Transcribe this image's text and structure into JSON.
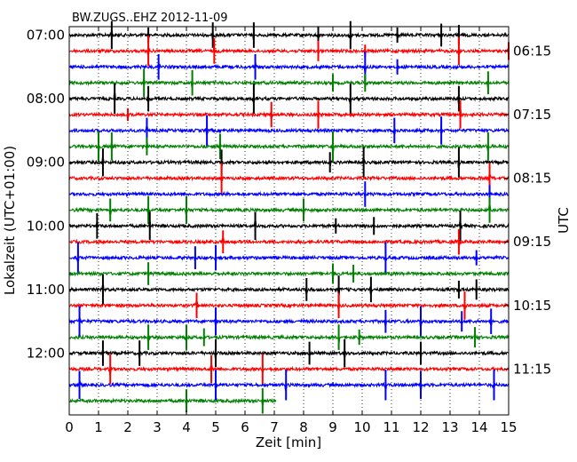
{
  "chart_data": {
    "type": "line",
    "title": "BW.ZUGS..EHZ 2012-11-09",
    "xlabel": "Zeit  [min]",
    "ylabel_left": "Lokalzeit (UTC+01:00)",
    "ylabel_right": "UTC",
    "xlim": [
      0,
      15
    ],
    "x_ticks": [
      "0",
      "1",
      "2",
      "3",
      "4",
      "5",
      "6",
      "7",
      "8",
      "9",
      "10",
      "11",
      "12",
      "13",
      "14",
      "15"
    ],
    "left_ticks": [
      "07:00",
      "08:00",
      "09:00",
      "10:00",
      "11:00",
      "12:00"
    ],
    "right_ticks": [
      "06:15",
      "07:15",
      "08:15",
      "09:15",
      "10:15",
      "11:15"
    ],
    "grid": "vertical dotted at each minute",
    "trace_minutes": 15,
    "trace_count": 24,
    "last_trace_end_min": 7.05,
    "colors": [
      "#000000",
      "#ff0000",
      "#0000ff",
      "#008000"
    ],
    "series": [
      {
        "row": 0,
        "start": "07:00",
        "events": [
          [
            1.45,
            0.55
          ],
          [
            2.7,
            0.3
          ],
          [
            4.9,
            0.5
          ],
          [
            6.3,
            0.5
          ],
          [
            8.5,
            0.35
          ],
          [
            9.6,
            0.55
          ],
          [
            11.2,
            0.3
          ],
          [
            12.7,
            0.45
          ],
          [
            13.3,
            0.4
          ]
        ]
      },
      {
        "row": 1,
        "start": "07:15",
        "events": [
          [
            2.7,
            0.6
          ],
          [
            4.95,
            0.5
          ],
          [
            8.5,
            0.4
          ],
          [
            10.1,
            0.25
          ],
          [
            13.3,
            0.55
          ],
          [
            15.0,
            0.35
          ]
        ]
      },
      {
        "row": 2,
        "start": "07:30",
        "events": [
          [
            3.05,
            0.5
          ],
          [
            6.35,
            0.5
          ],
          [
            10.1,
            0.6
          ],
          [
            11.2,
            0.3
          ]
        ]
      },
      {
        "row": 3,
        "start": "07:45",
        "events": [
          [
            2.55,
            0.55
          ],
          [
            4.2,
            0.5
          ],
          [
            9.0,
            0.35
          ],
          [
            10.1,
            0.35
          ],
          [
            14.3,
            0.45
          ]
        ]
      },
      {
        "row": 4,
        "start": "08:00",
        "events": [
          [
            1.55,
            0.6
          ],
          [
            2.7,
            0.5
          ],
          [
            6.3,
            0.6
          ],
          [
            9.6,
            0.6
          ],
          [
            13.3,
            0.5
          ]
        ]
      },
      {
        "row": 5,
        "start": "08:15",
        "events": [
          [
            2.0,
            0.25
          ],
          [
            6.9,
            0.5
          ],
          [
            8.5,
            0.55
          ],
          [
            13.35,
            0.55
          ]
        ]
      },
      {
        "row": 6,
        "start": "08:30",
        "events": [
          [
            2.65,
            0.5
          ],
          [
            4.7,
            0.6
          ],
          [
            11.1,
            0.5
          ],
          [
            12.7,
            0.55
          ]
        ]
      },
      {
        "row": 7,
        "start": "08:45",
        "events": [
          [
            1.0,
            0.6
          ],
          [
            1.45,
            0.55
          ],
          [
            2.65,
            0.35
          ],
          [
            5.15,
            0.5
          ],
          [
            9.0,
            0.6
          ],
          [
            14.3,
            0.55
          ]
        ]
      },
      {
        "row": 8,
        "start": "09:00",
        "events": [
          [
            1.15,
            0.55
          ],
          [
            5.2,
            0.5
          ],
          [
            8.9,
            0.4
          ],
          [
            10.05,
            0.6
          ],
          [
            13.3,
            0.6
          ]
        ]
      },
      {
        "row": 9,
        "start": "09:15",
        "events": [
          [
            5.2,
            0.6
          ],
          [
            14.35,
            0.6
          ]
        ]
      },
      {
        "row": 10,
        "start": "09:30",
        "events": [
          [
            10.1,
            0.5
          ],
          [
            14.35,
            0.35
          ]
        ]
      },
      {
        "row": 11,
        "start": "09:45",
        "events": [
          [
            1.4,
            0.45
          ],
          [
            2.7,
            0.55
          ],
          [
            4.0,
            0.55
          ],
          [
            8.0,
            0.45
          ],
          [
            14.35,
            0.5
          ]
        ]
      },
      {
        "row": 12,
        "start": "10:00",
        "events": [
          [
            0.95,
            0.5
          ],
          [
            2.75,
            0.55
          ],
          [
            6.35,
            0.55
          ],
          [
            9.1,
            0.3
          ],
          [
            10.4,
            0.35
          ],
          [
            13.35,
            0.6
          ]
        ]
      },
      {
        "row": 13,
        "start": "10:15",
        "events": [
          [
            5.25,
            0.45
          ],
          [
            13.3,
            0.5
          ]
        ]
      },
      {
        "row": 14,
        "start": "10:30",
        "events": [
          [
            0.3,
            0.6
          ],
          [
            4.3,
            0.45
          ],
          [
            5.0,
            0.5
          ],
          [
            10.8,
            0.6
          ],
          [
            13.9,
            0.3
          ]
        ]
      },
      {
        "row": 15,
        "start": "10:45",
        "events": [
          [
            2.7,
            0.45
          ],
          [
            9.0,
            0.4
          ],
          [
            9.7,
            0.35
          ]
        ]
      },
      {
        "row": 16,
        "start": "11:00",
        "events": [
          [
            1.15,
            0.6
          ],
          [
            8.1,
            0.45
          ],
          [
            9.2,
            0.55
          ],
          [
            10.3,
            0.5
          ],
          [
            13.3,
            0.35
          ],
          [
            13.9,
            0.4
          ]
        ]
      },
      {
        "row": 17,
        "start": "11:15",
        "events": [
          [
            4.35,
            0.5
          ],
          [
            9.2,
            0.5
          ],
          [
            13.5,
            0.55
          ]
        ]
      },
      {
        "row": 18,
        "start": "11:30",
        "events": [
          [
            0.35,
            0.6
          ],
          [
            5.0,
            0.55
          ],
          [
            10.8,
            0.45
          ],
          [
            12.0,
            0.6
          ],
          [
            13.4,
            0.4
          ],
          [
            14.4,
            0.5
          ]
        ]
      },
      {
        "row": 19,
        "start": "11:45",
        "events": [
          [
            2.7,
            0.5
          ],
          [
            4.0,
            0.5
          ],
          [
            4.6,
            0.35
          ],
          [
            9.2,
            0.5
          ],
          [
            9.9,
            0.3
          ],
          [
            13.85,
            0.4
          ]
        ]
      },
      {
        "row": 20,
        "start": "12:00",
        "events": [
          [
            1.15,
            0.5
          ],
          [
            2.4,
            0.5
          ],
          [
            5.0,
            0.55
          ],
          [
            8.2,
            0.45
          ],
          [
            9.4,
            0.55
          ],
          [
            12.0,
            0.45
          ]
        ]
      },
      {
        "row": 21,
        "start": "12:15",
        "events": [
          [
            1.4,
            0.6
          ],
          [
            4.85,
            0.55
          ],
          [
            6.6,
            0.6
          ]
        ]
      },
      {
        "row": 22,
        "start": "12:30",
        "events": [
          [
            0.35,
            0.55
          ],
          [
            5.0,
            0.6
          ],
          [
            7.4,
            0.6
          ],
          [
            10.8,
            0.6
          ],
          [
            12.0,
            0.55
          ],
          [
            14.5,
            0.6
          ]
        ]
      },
      {
        "row": 23,
        "start": "12:45",
        "events": [
          [
            4.0,
            0.45
          ],
          [
            6.6,
            0.5
          ]
        ]
      }
    ]
  }
}
